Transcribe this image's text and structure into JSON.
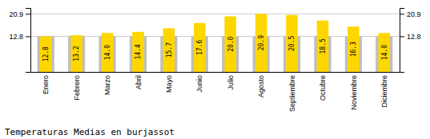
{
  "chart_data": {
    "type": "bar",
    "title": "Temperaturas Medias en burjassot",
    "categories": [
      "Enero",
      "Febrero",
      "Marzo",
      "Abril",
      "Mayo",
      "Junio",
      "Julio",
      "Agosto",
      "Septiembre",
      "Octubre",
      "Noviembre",
      "Diciembre"
    ],
    "series": [
      {
        "color": "#BEBEBE",
        "values": [
          12.8,
          12.8,
          12.8,
          12.8,
          12.8,
          12.8,
          12.8,
          12.8,
          12.8,
          12.8,
          12.8,
          12.8
        ]
      },
      {
        "color": "#FFD700",
        "values": [
          12.8,
          13.2,
          14.0,
          14.4,
          15.7,
          17.6,
          20.0,
          20.9,
          20.5,
          18.5,
          16.3,
          14.0
        ],
        "data_labels": true,
        "value_labels": [
          "12.8",
          "13.2",
          "14.0",
          "14.4",
          "15.7",
          "17.6",
          "20.0",
          "20.9",
          "20.5",
          "18.5",
          "16.3",
          "14.0"
        ]
      }
    ],
    "ylim": [
      0,
      23.0
    ],
    "yticks": [
      12.8,
      20.9
    ],
    "y2lim": [
      0,
      23.0
    ],
    "y2ticks": [
      12.8,
      20.9
    ],
    "grid": true
  }
}
